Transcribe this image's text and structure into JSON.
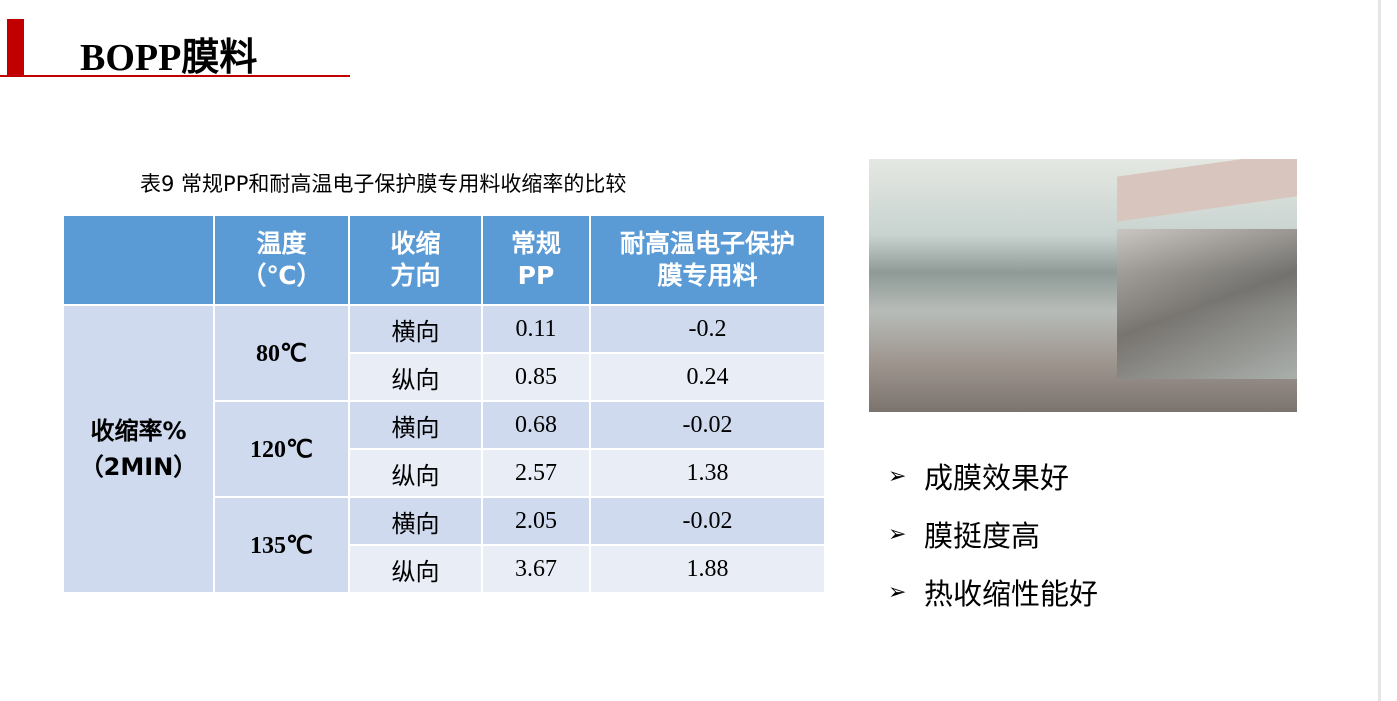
{
  "title": "BOPP膜料",
  "table": {
    "caption": "表9  常规PP和耐高温电子保护膜专用料收缩率的比较",
    "headers": [
      "",
      "温度\n（℃）",
      "收缩\n方向",
      "常规\nPP",
      "耐高温电子保护\n膜专用料"
    ],
    "row_label": "收缩率%\n（2MIN）",
    "groups": [
      {
        "temp": "80℃",
        "rows": [
          [
            "横向",
            "0.11",
            "-0.2"
          ],
          [
            "纵向",
            "0.85",
            "0.24"
          ]
        ]
      },
      {
        "temp": "120℃",
        "rows": [
          [
            "横向",
            "0.68",
            "-0.02"
          ],
          [
            "纵向",
            "2.57",
            "1.38"
          ]
        ]
      },
      {
        "temp": "135℃",
        "rows": [
          [
            "横向",
            "2.05",
            "-0.02"
          ],
          [
            "纵向",
            "3.67",
            "1.88"
          ]
        ]
      }
    ]
  },
  "bullets": [
    "成膜效果好",
    "膜挺度高",
    "热收缩性能好"
  ],
  "colors": {
    "accent": "#c00000",
    "header": "#5b9bd5"
  }
}
